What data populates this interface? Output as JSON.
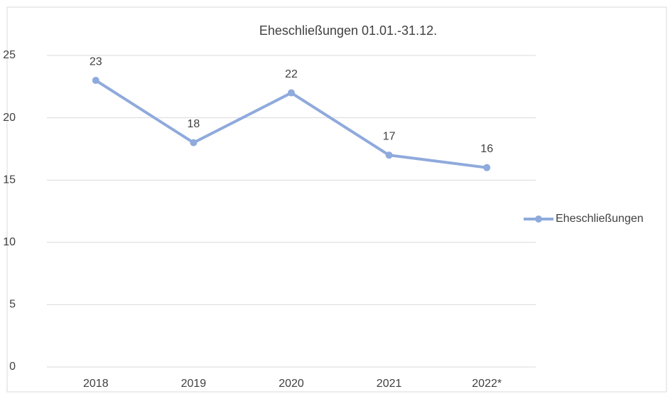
{
  "chart_data": {
    "type": "line",
    "title": "Eheschließungen 01.01.-31.12.",
    "categories": [
      "2018",
      "2019",
      "2020",
      "2021",
      "2022*"
    ],
    "series": [
      {
        "name": "Eheschließungen",
        "color": "#8faadc",
        "values": [
          23,
          18,
          22,
          17,
          16
        ]
      }
    ],
    "ylim": [
      0,
      25
    ],
    "yticks": [
      0,
      5,
      10,
      15,
      20,
      25
    ],
    "grid": true,
    "legend": "right"
  }
}
